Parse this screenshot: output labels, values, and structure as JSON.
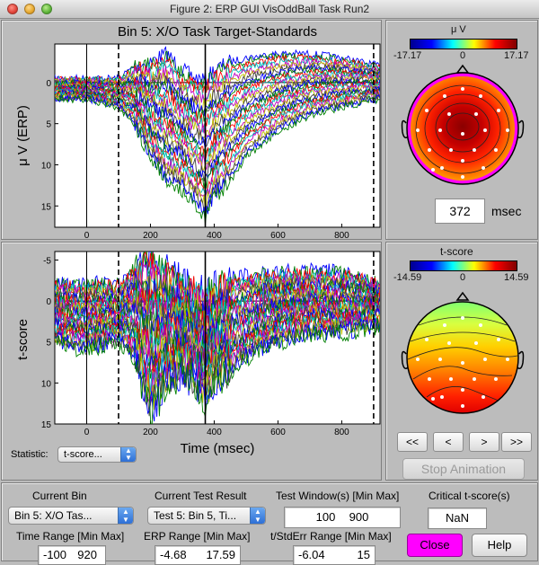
{
  "window": {
    "title": "Figure 2: ERP GUI VisOddBall Task Run2"
  },
  "erp_plot": {
    "title": "Bin 5: X/O Task Target-Standards",
    "ylabel": "μ V (ERP)",
    "xticks": [
      "0",
      "200",
      "400",
      "600",
      "800"
    ],
    "yticks": [
      "0",
      "5",
      "10",
      "15"
    ]
  },
  "t_plot": {
    "ylabel": "t-score",
    "xlabel": "Time (msec)",
    "xticks": [
      "0",
      "200",
      "400",
      "600",
      "800"
    ],
    "yticks": [
      "-5",
      "0",
      "5",
      "10",
      "15"
    ]
  },
  "statistic": {
    "label": "Statistic:",
    "value": "t-score..."
  },
  "topo_top": {
    "colorbar_title": "μ V",
    "cmin": "-17.17",
    "cmid": "0",
    "cmax": "17.17"
  },
  "topo_bottom": {
    "colorbar_title": "t-score",
    "cmin": "-14.59",
    "cmid": "0",
    "cmax": "14.59"
  },
  "time_display": {
    "value": "372",
    "unit": "msec"
  },
  "nav": {
    "first": "<<",
    "prev": "<",
    "next": ">",
    "last": ">>",
    "stop": "Stop Animation"
  },
  "controls": {
    "current_bin_label": "Current Bin",
    "current_bin_value": "Bin 5: X/O Tas...",
    "current_test_label": "Current Test Result",
    "current_test_value": "Test 5: Bin 5, Ti...",
    "test_window_label": "Test Window(s) [Min Max]",
    "test_window_min": "100",
    "test_window_max": "900",
    "critical_label": "Critical t-score(s)",
    "critical_value": "NaN",
    "time_range_label": "Time Range [Min Max]",
    "time_range_min": "-100",
    "time_range_max": "920",
    "erp_range_label": "ERP Range [Min Max]",
    "erp_range_min": "-4.68",
    "erp_range_max": "17.59",
    "tstd_range_label": "t/StdErr Range [Min Max]",
    "tstd_range_min": "-6.04",
    "tstd_range_max": "15",
    "close": "Close",
    "help": "Help"
  },
  "chart_data": [
    {
      "type": "line",
      "title": "Bin 5: X/O Task Target-Standards",
      "xlabel": "",
      "ylabel": "μ V (ERP)",
      "xlim": [
        -100,
        920
      ],
      "ylim": [
        -4.68,
        17.59
      ],
      "y_inverted": true,
      "cursor_ms": 372,
      "test_window": [
        100,
        900
      ],
      "series_count": 30,
      "envelope": {
        "x": [
          -100,
          0,
          100,
          150,
          200,
          250,
          300,
          340,
          372,
          400,
          450,
          500,
          600,
          700,
          800,
          920
        ],
        "most_negative": [
          -0.5,
          -0.5,
          -0.5,
          -2,
          -2.5,
          -3.5,
          -1.5,
          -0.5,
          -0.3,
          -1.5,
          -2.5,
          -3,
          -3.5,
          -3.5,
          -3,
          -2
        ],
        "most_positive": [
          2,
          2,
          3,
          5,
          9,
          12,
          13,
          14.5,
          16.5,
          14,
          12,
          9,
          6,
          4,
          3,
          2
        ]
      }
    },
    {
      "type": "line",
      "title": "",
      "xlabel": "Time (msec)",
      "ylabel": "t-score",
      "xlim": [
        -100,
        920
      ],
      "ylim": [
        -6.04,
        15
      ],
      "y_inverted": true,
      "cursor_ms": 372,
      "test_window": [
        100,
        900
      ],
      "series_count": 30,
      "envelope": {
        "x": [
          -100,
          0,
          100,
          150,
          200,
          250,
          300,
          340,
          372,
          400,
          450,
          500,
          600,
          700,
          800,
          920
        ],
        "most_negative": [
          -2,
          -2,
          -2,
          -4,
          -5,
          -3.5,
          -2,
          -1.5,
          -0.5,
          -1.5,
          -2.5,
          -3,
          -3.5,
          -3.5,
          -3.5,
          -2
        ],
        "most_positive": [
          5,
          6,
          5,
          7,
          14,
          10,
          9,
          10,
          12.5,
          10,
          9,
          7,
          5,
          4,
          4,
          3
        ]
      }
    }
  ]
}
